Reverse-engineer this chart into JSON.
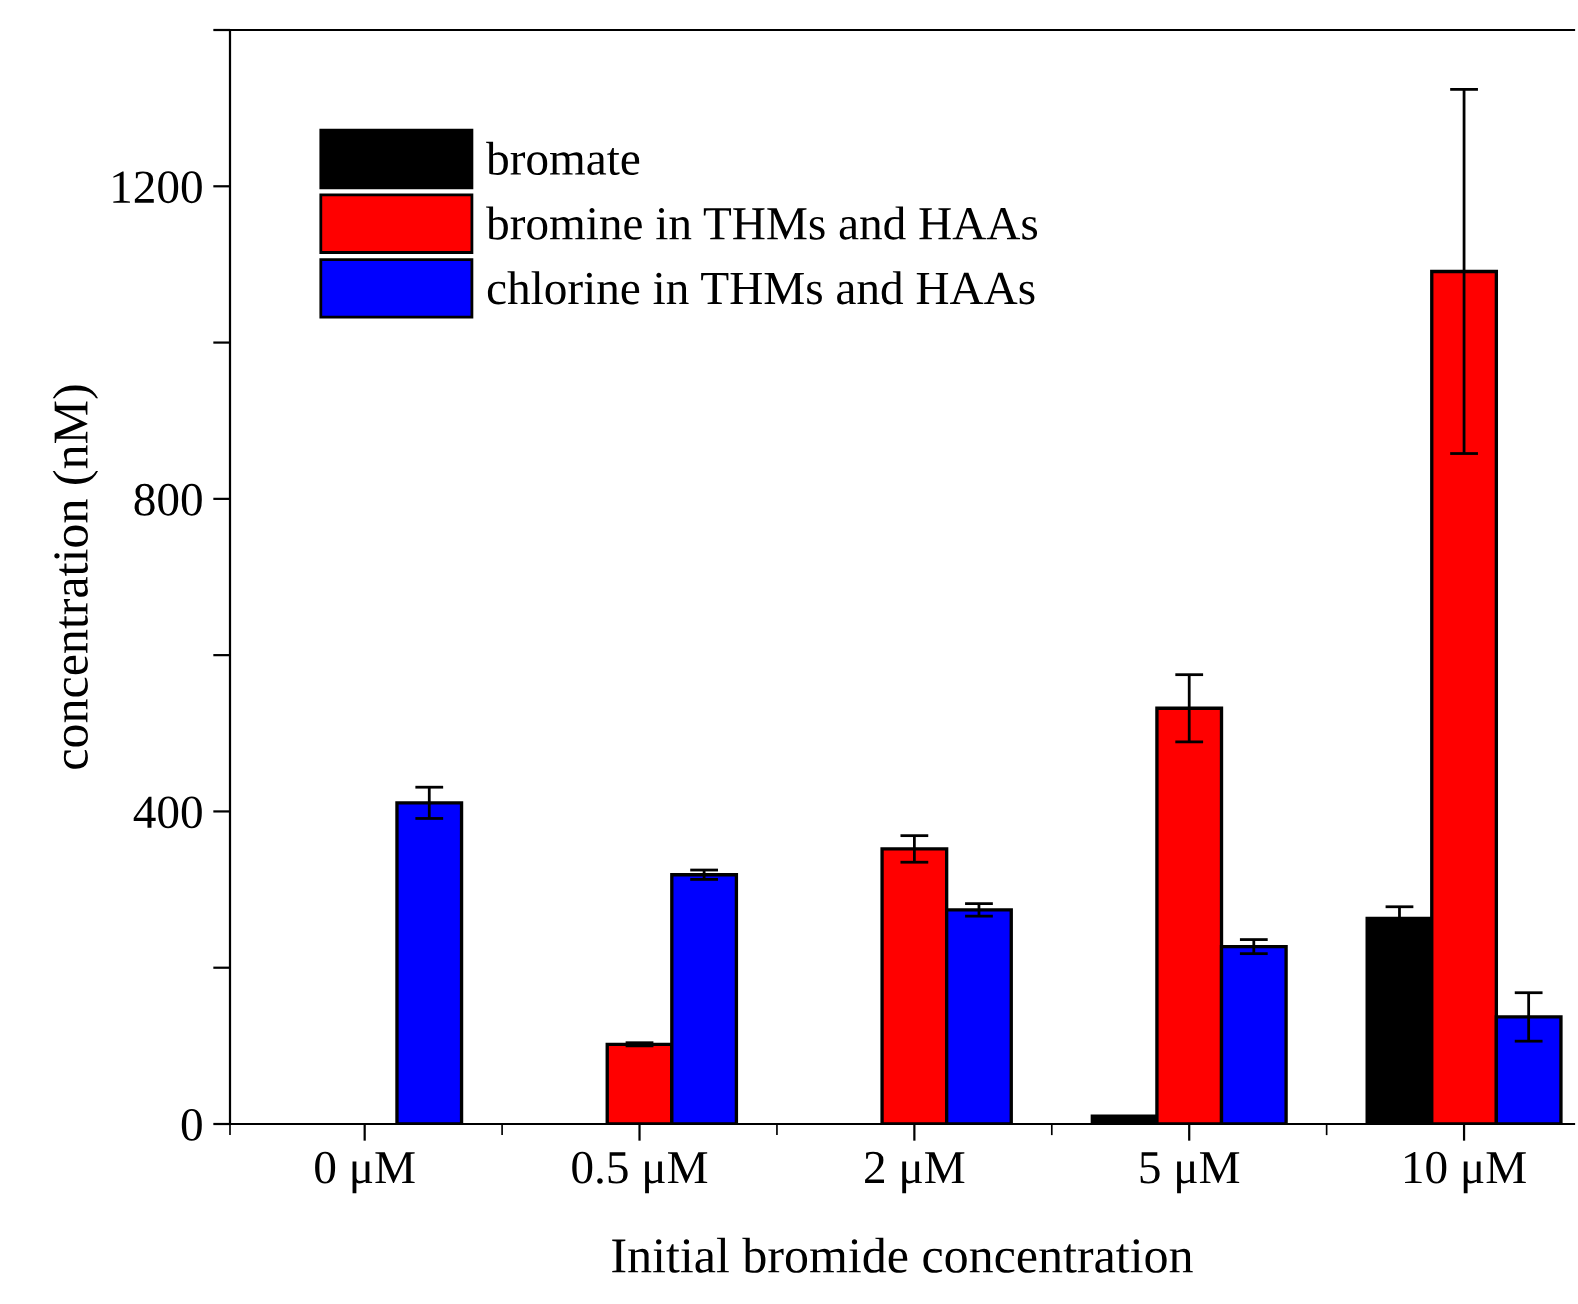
{
  "chart_data": {
    "type": "bar",
    "xlabel": "Initial bromide concentration",
    "ylabel": "concentration (nM)",
    "categories": [
      "0 μM",
      "0.5 μM",
      "2 μM",
      "5 μM",
      "10 μM"
    ],
    "series": [
      {
        "name": "bromate",
        "color": "#000000",
        "values": [
          null,
          null,
          null,
          10,
          263
        ],
        "errors": [
          null,
          null,
          null,
          null,
          15
        ]
      },
      {
        "name": "bromine in THMs and HAAs",
        "color": "#ff0000",
        "values": [
          null,
          102,
          352,
          532,
          1091
        ],
        "errors": [
          null,
          2,
          17,
          43,
          233
        ]
      },
      {
        "name": "chlorine in THMs and HAAs",
        "color": "#0000ff",
        "values": [
          411,
          319,
          274,
          227,
          137
        ],
        "errors": [
          20,
          6,
          8,
          9,
          31
        ]
      }
    ],
    "ylim": [
      0,
      1400
    ],
    "yticks": [
      0,
      {
        "value": 200,
        "label": null
      },
      400,
      {
        "value": 600,
        "label": null
      },
      800,
      {
        "value": 1000,
        "label": null
      },
      1200,
      {
        "value": 1400,
        "label": null
      }
    ],
    "grid": false,
    "legend": "top left"
  }
}
